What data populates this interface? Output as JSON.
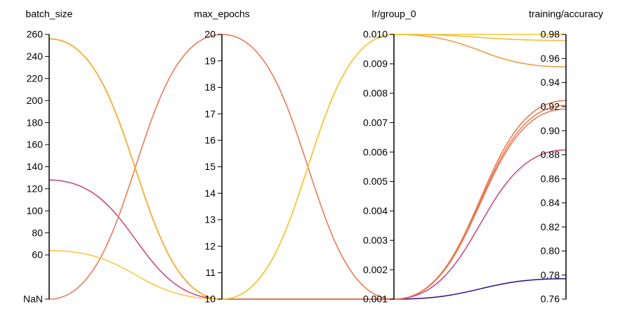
{
  "chart_data": {
    "type": "parallel",
    "axes": [
      {
        "label": "batch_size",
        "lim": [
          60,
          260
        ],
        "ticks": [
          60,
          80,
          100,
          120,
          140,
          160,
          180,
          200,
          220,
          240,
          260
        ],
        "nan_label": "NaN"
      },
      {
        "label": "max_epochs",
        "lim": [
          10,
          20
        ],
        "ticks": [
          10,
          11,
          12,
          13,
          14,
          15,
          16,
          17,
          18,
          19,
          20
        ]
      },
      {
        "label": "lr/group_0",
        "lim": [
          0.001,
          0.01
        ],
        "ticks": [
          0.001,
          0.002,
          0.003,
          0.004,
          0.005,
          0.006,
          0.007,
          0.008,
          0.009,
          {
            "value": 0.01,
            "label": "0.010"
          }
        ]
      },
      {
        "label": "training/accuracy",
        "lim": [
          0.76,
          0.98
        ],
        "ticks": [
          0.76,
          0.78,
          {
            "value": 0.8,
            "label": "0.80"
          },
          0.82,
          0.84,
          0.86,
          0.88,
          {
            "value": 0.9,
            "label": "0.90"
          },
          0.92,
          0.94,
          0.96,
          0.98
        ]
      }
    ],
    "series": [
      {
        "color": "#2c0a8c",
        "values": [
          256,
          10,
          0.001,
          0.777
        ]
      },
      {
        "color": "#c8407a",
        "values": [
          128,
          10,
          0.001,
          0.884
        ]
      },
      {
        "color": "#e8704f",
        "values": [
          256,
          10,
          0.001,
          0.918
        ]
      },
      {
        "color": "#eb7a4a",
        "values": [
          256,
          10,
          0.001,
          0.921
        ]
      },
      {
        "color": "#e9744d",
        "values": [
          null,
          20,
          0.001,
          0.925
        ]
      },
      {
        "color": "#f59a3c",
        "values": [
          256,
          10,
          0.01,
          0.953
        ]
      },
      {
        "color": "#f8b632",
        "values": [
          256,
          10,
          0.01,
          0.975
        ]
      },
      {
        "color": "#f7c631",
        "values": [
          64,
          10,
          0.01,
          0.98
        ]
      }
    ]
  }
}
